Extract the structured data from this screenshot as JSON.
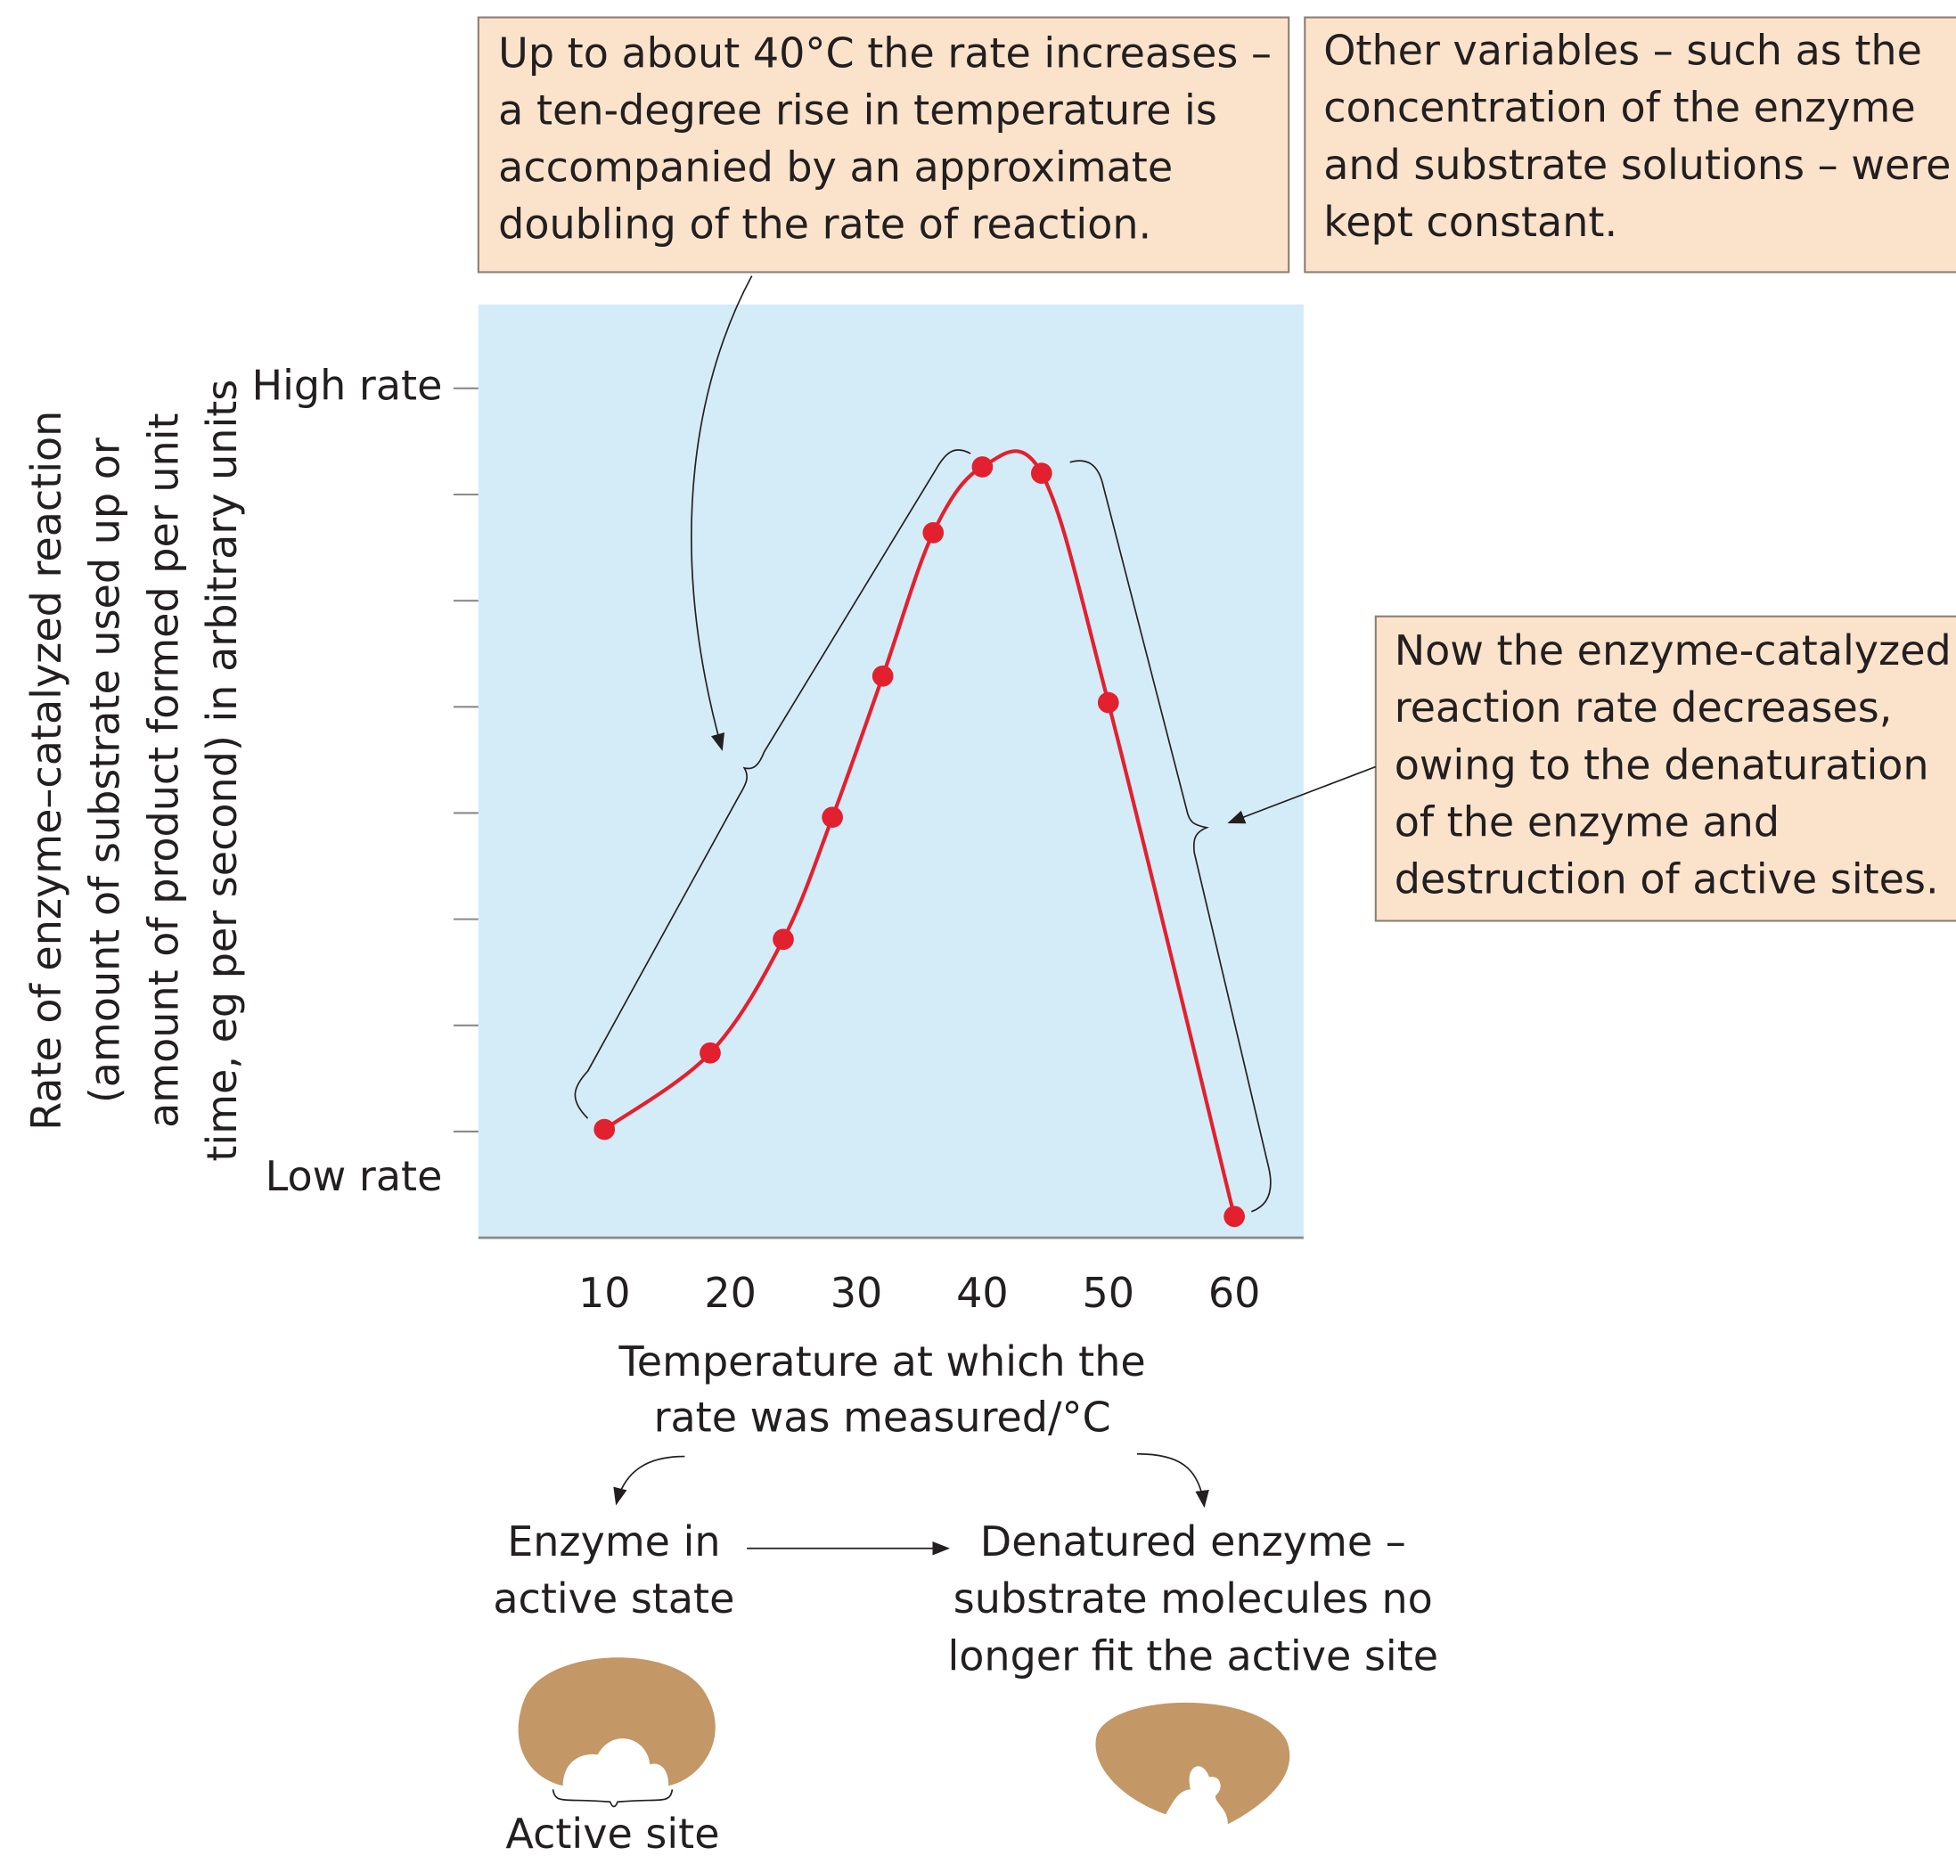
{
  "chart_data": {
    "type": "line",
    "x": [
      10,
      18.4,
      24.2,
      28.1,
      32.1,
      36.1,
      40,
      44.7,
      50,
      60
    ],
    "values": [
      1.02,
      1.74,
      2.81,
      3.96,
      5.29,
      6.64,
      7.26,
      7.2,
      5.04,
      0.2
    ],
    "color": "#e3202e",
    "xlim": [
      0,
      65.5
    ],
    "xticks": [
      10,
      20,
      30,
      40,
      50,
      60
    ],
    "ylim": [
      0,
      8.79
    ],
    "yticks": [
      1,
      2,
      3,
      4,
      5,
      6,
      7,
      8
    ],
    "ytick_labels": [
      {
        "value": 8,
        "label": "High rate"
      },
      {
        "value": 0.55,
        "label": "Low rate"
      }
    ],
    "xlabel": [
      "Temperature at which the",
      "rate was measured/°C"
    ],
    "ylabel": [
      "Rate of enzyme–catalyzed reaction",
      "(amount of substrate used up or",
      "amount of product formed per unit",
      "time, eg per second) in arbitrary units"
    ],
    "annotations": [
      [
        "Up to about 40°C the rate increases –",
        "a ten-degree rise in temperature is",
        "accompanied by an approximate",
        "doubling of the rate of reaction."
      ],
      [
        "Other variables – such as the",
        "concentration of the enzyme",
        "and substrate solutions – were",
        "kept constant."
      ],
      [
        "Now the enzyme-catalyzed",
        "reaction rate decreases,",
        "owing to the denaturation",
        "of the enzyme and",
        "destruction of active sites."
      ]
    ],
    "states": [
      [
        "Enzyme in",
        "active state"
      ],
      [
        "Denatured enzyme –",
        "substrate molecules no",
        "longer fit the active site"
      ]
    ],
    "active_site_label": "Active site"
  }
}
